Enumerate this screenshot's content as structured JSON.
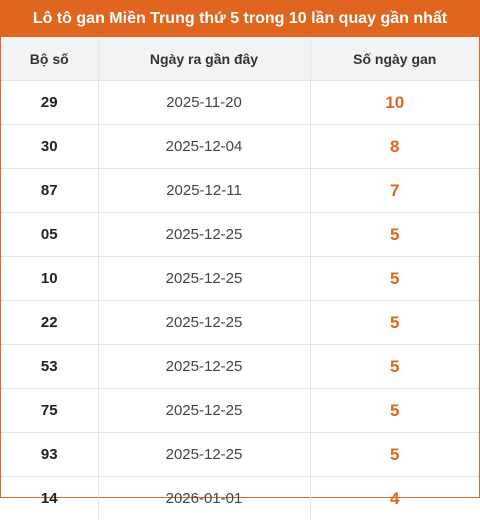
{
  "title": "Lô tô gan Miền Trung thứ 5 trong 10 lần quay gần nhất",
  "colors": {
    "accent": "#e0651f",
    "header_bg": "#f3f3f3"
  },
  "headers": {
    "number": "Bộ số",
    "last_date": "Ngày ra gần đây",
    "days_gan": "Số ngày gan"
  },
  "rows": [
    {
      "number": "29",
      "last_date": "2025-11-20",
      "days_gan": "10"
    },
    {
      "number": "30",
      "last_date": "2025-12-04",
      "days_gan": "8"
    },
    {
      "number": "87",
      "last_date": "2025-12-11",
      "days_gan": "7"
    },
    {
      "number": "05",
      "last_date": "2025-12-25",
      "days_gan": "5"
    },
    {
      "number": "10",
      "last_date": "2025-12-25",
      "days_gan": "5"
    },
    {
      "number": "22",
      "last_date": "2025-12-25",
      "days_gan": "5"
    },
    {
      "number": "53",
      "last_date": "2025-12-25",
      "days_gan": "5"
    },
    {
      "number": "75",
      "last_date": "2025-12-25",
      "days_gan": "5"
    },
    {
      "number": "93",
      "last_date": "2025-12-25",
      "days_gan": "5"
    },
    {
      "number": "14",
      "last_date": "2026-01-01",
      "days_gan": "4"
    }
  ]
}
